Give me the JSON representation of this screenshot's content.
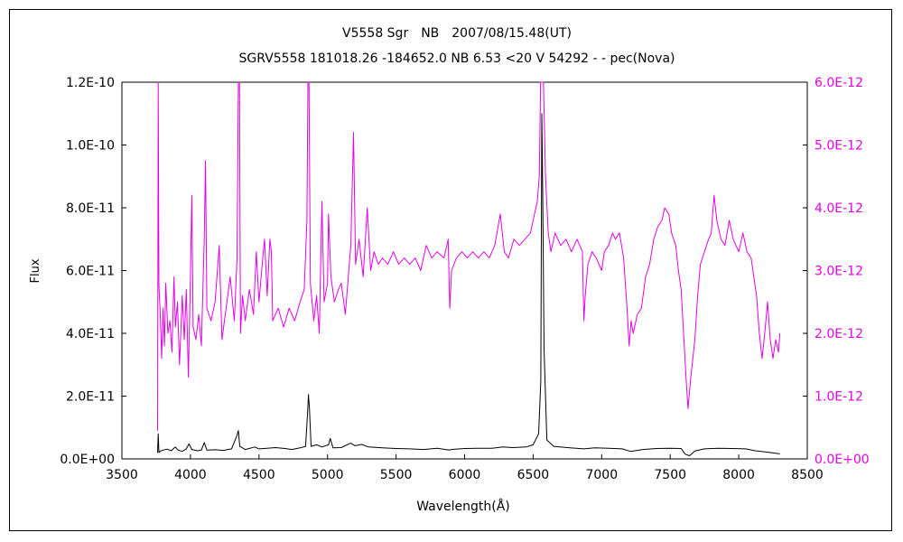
{
  "chart_data": {
    "type": "line",
    "title": "V5558 Sgr　NB　2007/08/15.48(UT)",
    "subtitle": "SGRV5558 181018.26 -184652.0 NB 6.53 <20 V 54292 - - pec(Nova)",
    "xlabel": "Wavelength(Å)",
    "ylabel": "Flux",
    "xlim": [
      3500,
      8500
    ],
    "ylim_left": [
      0,
      1.2e-10
    ],
    "ylim_right": [
      0,
      6e-12
    ],
    "x_ticks": [
      "3500",
      "4000",
      "4500",
      "5000",
      "5500",
      "6000",
      "6500",
      "7000",
      "7500",
      "8000",
      "8500"
    ],
    "y_ticks_left": [
      "0.0E+00",
      "2.0E-11",
      "4.0E-11",
      "6.0E-11",
      "8.0E-11",
      "1.0E-10",
      "1.2E-10"
    ],
    "y_ticks_right": [
      "0.0E+00",
      "1.0E-12",
      "2.0E-12",
      "3.0E-12",
      "4.0E-12",
      "5.0E-12",
      "6.0E-12"
    ],
    "grid": false,
    "series": [
      {
        "axis": "left",
        "color": "#000000",
        "points": [
          [
            3760,
            2e-12
          ],
          [
            3765,
            8e-12
          ],
          [
            3770,
            2e-12
          ],
          [
            3780,
            2.5e-12
          ],
          [
            3800,
            2.8e-12
          ],
          [
            3830,
            3.1e-12
          ],
          [
            3860,
            2.6e-12
          ],
          [
            3890,
            3.8e-12
          ],
          [
            3910,
            2.8e-12
          ],
          [
            3940,
            2.4e-12
          ],
          [
            3970,
            3.2e-12
          ],
          [
            3990,
            4.8e-12
          ],
          [
            4010,
            3e-12
          ],
          [
            4050,
            2.6e-12
          ],
          [
            4080,
            2.8e-12
          ],
          [
            4101,
            5.2e-12
          ],
          [
            4120,
            2.8e-12
          ],
          [
            4180,
            2.9e-12
          ],
          [
            4240,
            2.7e-12
          ],
          [
            4300,
            3.2e-12
          ],
          [
            4340,
            7.5e-12
          ],
          [
            4350,
            9e-12
          ],
          [
            4360,
            4e-12
          ],
          [
            4400,
            3e-12
          ],
          [
            4470,
            3.8e-12
          ],
          [
            4500,
            3.2e-12
          ],
          [
            4560,
            3.4e-12
          ],
          [
            4620,
            3.6e-12
          ],
          [
            4690,
            3.3e-12
          ],
          [
            4740,
            3e-12
          ],
          [
            4800,
            3.5e-12
          ],
          [
            4840,
            4e-12
          ],
          [
            4855,
            1.5e-11
          ],
          [
            4861,
            2.05e-11
          ],
          [
            4868,
            1.6e-11
          ],
          [
            4880,
            4e-12
          ],
          [
            4920,
            4.5e-12
          ],
          [
            4959,
            3.8e-12
          ],
          [
            5007,
            4.5e-12
          ],
          [
            5020,
            6.5e-12
          ],
          [
            5040,
            3.5e-12
          ],
          [
            5100,
            3.6e-12
          ],
          [
            5169,
            5e-12
          ],
          [
            5200,
            4.2e-12
          ],
          [
            5250,
            4.6e-12
          ],
          [
            5300,
            3.8e-12
          ],
          [
            5400,
            3.5e-12
          ],
          [
            5500,
            3.3e-12
          ],
          [
            5600,
            3.2e-12
          ],
          [
            5700,
            3e-12
          ],
          [
            5800,
            3.4e-12
          ],
          [
            5890,
            2.8e-12
          ],
          [
            5900,
            3e-12
          ],
          [
            6000,
            3.3e-12
          ],
          [
            6100,
            3.4e-12
          ],
          [
            6200,
            3.4e-12
          ],
          [
            6280,
            3.8e-12
          ],
          [
            6350,
            3.6e-12
          ],
          [
            6450,
            3.8e-12
          ],
          [
            6500,
            4.5e-12
          ],
          [
            6540,
            8e-12
          ],
          [
            6556,
            2.5e-11
          ],
          [
            6563,
            1.1e-10
          ],
          [
            6570,
            8.5e-11
          ],
          [
            6580,
            3.5e-11
          ],
          [
            6600,
            6e-12
          ],
          [
            6650,
            4e-12
          ],
          [
            6750,
            3.6e-12
          ],
          [
            6870,
            3.2e-12
          ],
          [
            6950,
            3.5e-12
          ],
          [
            7050,
            3.4e-12
          ],
          [
            7150,
            3.2e-12
          ],
          [
            7210,
            2.4e-12
          ],
          [
            7300,
            3e-12
          ],
          [
            7400,
            3.3e-12
          ],
          [
            7500,
            3.4e-12
          ],
          [
            7580,
            3.3e-12
          ],
          [
            7610,
            1.5e-12
          ],
          [
            7640,
            1e-12
          ],
          [
            7680,
            2.5e-12
          ],
          [
            7750,
            3.2e-12
          ],
          [
            7850,
            3.4e-12
          ],
          [
            7950,
            3.3e-12
          ],
          [
            8050,
            3.2e-12
          ],
          [
            8120,
            2.6e-12
          ],
          [
            8200,
            2.2e-12
          ],
          [
            8300,
            1.6e-12
          ]
        ]
      },
      {
        "axis": "right",
        "color": "#e600e6",
        "points": [
          [
            3760,
            4.5e-13
          ],
          [
            3765,
            6e-12
          ],
          [
            3770,
            2.75e-12
          ],
          [
            3780,
            2.3e-12
          ],
          [
            3790,
            1.6e-12
          ],
          [
            3800,
            2.4e-12
          ],
          [
            3810,
            1.8e-12
          ],
          [
            3820,
            2.8e-12
          ],
          [
            3835,
            2e-12
          ],
          [
            3850,
            2.2e-12
          ],
          [
            3865,
            1.7e-12
          ],
          [
            3880,
            2.9e-12
          ],
          [
            3890,
            2.1e-12
          ],
          [
            3905,
            2.5e-12
          ],
          [
            3920,
            1.5e-12
          ],
          [
            3940,
            2.6e-12
          ],
          [
            3955,
            1.9e-12
          ],
          [
            3970,
            2.7e-12
          ],
          [
            3985,
            1.3e-12
          ],
          [
            4000,
            2.9e-12
          ],
          [
            4010,
            4.2e-12
          ],
          [
            4020,
            2.1e-12
          ],
          [
            4040,
            1.9e-12
          ],
          [
            4060,
            2.3e-12
          ],
          [
            4080,
            1.8e-12
          ],
          [
            4101,
            3.5e-12
          ],
          [
            4110,
            4.75e-12
          ],
          [
            4120,
            2.4e-12
          ],
          [
            4150,
            2.2e-12
          ],
          [
            4180,
            2.5e-12
          ],
          [
            4210,
            3.4e-12
          ],
          [
            4230,
            1.9e-12
          ],
          [
            4260,
            2.4e-12
          ],
          [
            4290,
            2.9e-12
          ],
          [
            4320,
            2.2e-12
          ],
          [
            4340,
            3.2e-12
          ],
          [
            4350,
            6e-12
          ],
          [
            4358,
            6e-12
          ],
          [
            4365,
            2e-12
          ],
          [
            4380,
            2.6e-12
          ],
          [
            4400,
            2.2e-12
          ],
          [
            4430,
            2.7e-12
          ],
          [
            4460,
            2.3e-12
          ],
          [
            4480,
            3.3e-12
          ],
          [
            4500,
            2.5e-12
          ],
          [
            4520,
            3e-12
          ],
          [
            4540,
            3.5e-12
          ],
          [
            4560,
            2.6e-12
          ],
          [
            4580,
            3.5e-12
          ],
          [
            4590,
            3.3e-12
          ],
          [
            4600,
            2.2e-12
          ],
          [
            4640,
            2.4e-12
          ],
          [
            4680,
            2.1e-12
          ],
          [
            4720,
            2.4e-12
          ],
          [
            4760,
            2.2e-12
          ],
          [
            4800,
            2.5e-12
          ],
          [
            4830,
            2.7e-12
          ],
          [
            4850,
            3.8e-12
          ],
          [
            4857,
            6e-12
          ],
          [
            4865,
            6e-12
          ],
          [
            4875,
            2.8e-12
          ],
          [
            4900,
            2.2e-12
          ],
          [
            4920,
            2.6e-12
          ],
          [
            4940,
            2e-12
          ],
          [
            4959,
            4.1e-12
          ],
          [
            4975,
            2.5e-12
          ],
          [
            5000,
            2.8e-12
          ],
          [
            5007,
            3.9e-12
          ],
          [
            5025,
            2.9e-12
          ],
          [
            5050,
            2.5e-12
          ],
          [
            5080,
            2.7e-12
          ],
          [
            5100,
            2.8e-12
          ],
          [
            5130,
            2.3e-12
          ],
          [
            5170,
            3.4e-12
          ],
          [
            5190,
            5.2e-12
          ],
          [
            5205,
            3.1e-12
          ],
          [
            5230,
            3.5e-12
          ],
          [
            5260,
            2.9e-12
          ],
          [
            5290,
            4e-12
          ],
          [
            5315,
            3e-12
          ],
          [
            5340,
            3.3e-12
          ],
          [
            5370,
            3.1e-12
          ],
          [
            5400,
            3.2e-12
          ],
          [
            5440,
            3.1e-12
          ],
          [
            5480,
            3.3e-12
          ],
          [
            5520,
            3.1e-12
          ],
          [
            5560,
            3.2e-12
          ],
          [
            5600,
            3.1e-12
          ],
          [
            5640,
            3.2e-12
          ],
          [
            5680,
            3e-12
          ],
          [
            5720,
            3.4e-12
          ],
          [
            5760,
            3.2e-12
          ],
          [
            5800,
            3.3e-12
          ],
          [
            5850,
            3.2e-12
          ],
          [
            5880,
            3.5e-12
          ],
          [
            5892,
            2.4e-12
          ],
          [
            5905,
            3e-12
          ],
          [
            5940,
            3.2e-12
          ],
          [
            5980,
            3.3e-12
          ],
          [
            6020,
            3.2e-12
          ],
          [
            6060,
            3.3e-12
          ],
          [
            6100,
            3.2e-12
          ],
          [
            6140,
            3.3e-12
          ],
          [
            6180,
            3.2e-12
          ],
          [
            6220,
            3.4e-12
          ],
          [
            6260,
            3.9e-12
          ],
          [
            6290,
            3.3e-12
          ],
          [
            6320,
            3.2e-12
          ],
          [
            6360,
            3.5e-12
          ],
          [
            6400,
            3.4e-12
          ],
          [
            6440,
            3.5e-12
          ],
          [
            6480,
            3.6e-12
          ],
          [
            6510,
            3.9e-12
          ],
          [
            6530,
            4.1e-12
          ],
          [
            6545,
            4.5e-12
          ],
          [
            6555,
            6e-12
          ],
          [
            6575,
            6e-12
          ],
          [
            6590,
            4.5e-12
          ],
          [
            6610,
            3.6e-12
          ],
          [
            6630,
            3.3e-12
          ],
          [
            6660,
            3.6e-12
          ],
          [
            6700,
            3.4e-12
          ],
          [
            6740,
            3.5e-12
          ],
          [
            6780,
            3.3e-12
          ],
          [
            6820,
            3.5e-12
          ],
          [
            6860,
            3.3e-12
          ],
          [
            6870,
            2.2e-12
          ],
          [
            6880,
            2.6e-12
          ],
          [
            6900,
            3.1e-12
          ],
          [
            6930,
            3.3e-12
          ],
          [
            6960,
            3.2e-12
          ],
          [
            7000,
            3e-12
          ],
          [
            7020,
            3.3e-12
          ],
          [
            7050,
            3.4e-12
          ],
          [
            7080,
            3.6e-12
          ],
          [
            7100,
            3.5e-12
          ],
          [
            7130,
            3.6e-12
          ],
          [
            7160,
            3.2e-12
          ],
          [
            7185,
            2.4e-12
          ],
          [
            7200,
            1.8e-12
          ],
          [
            7215,
            2.2e-12
          ],
          [
            7230,
            2e-12
          ],
          [
            7260,
            2.3e-12
          ],
          [
            7290,
            2.4e-12
          ],
          [
            7320,
            2.9e-12
          ],
          [
            7350,
            3.1e-12
          ],
          [
            7380,
            3.5e-12
          ],
          [
            7410,
            3.7e-12
          ],
          [
            7440,
            3.8e-12
          ],
          [
            7460,
            4e-12
          ],
          [
            7490,
            3.9e-12
          ],
          [
            7510,
            3.6e-12
          ],
          [
            7540,
            3.4e-12
          ],
          [
            7560,
            3e-12
          ],
          [
            7580,
            2.7e-12
          ],
          [
            7600,
            1.9e-12
          ],
          [
            7615,
            1.3e-12
          ],
          [
            7630,
            8e-13
          ],
          [
            7650,
            1.3e-12
          ],
          [
            7680,
            1.9e-12
          ],
          [
            7700,
            2.6e-12
          ],
          [
            7720,
            3.1e-12
          ],
          [
            7750,
            3.3e-12
          ],
          [
            7780,
            3.5e-12
          ],
          [
            7800,
            3.6e-12
          ],
          [
            7820,
            4.2e-12
          ],
          [
            7840,
            3.8e-12
          ],
          [
            7870,
            3.5e-12
          ],
          [
            7900,
            3.4e-12
          ],
          [
            7930,
            3.8e-12
          ],
          [
            7960,
            3.5e-12
          ],
          [
            8000,
            3.3e-12
          ],
          [
            8030,
            3.6e-12
          ],
          [
            8060,
            3.3e-12
          ],
          [
            8090,
            3.2e-12
          ],
          [
            8110,
            2.9e-12
          ],
          [
            8130,
            2.6e-12
          ],
          [
            8150,
            2e-12
          ],
          [
            8170,
            1.6e-12
          ],
          [
            8190,
            2e-12
          ],
          [
            8210,
            2.5e-12
          ],
          [
            8230,
            1.9e-12
          ],
          [
            8250,
            1.6e-12
          ],
          [
            8270,
            1.9e-12
          ],
          [
            8290,
            1.7e-12
          ],
          [
            8300,
            2e-12
          ]
        ]
      }
    ]
  }
}
